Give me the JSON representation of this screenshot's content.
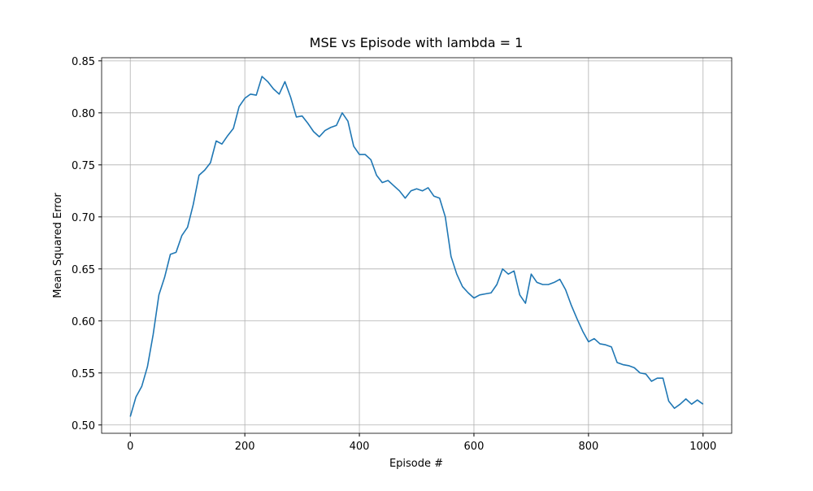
{
  "chart_data": {
    "type": "line",
    "title": "MSE vs Episode with lambda = 1",
    "x_label": "Episode #",
    "y_label": "Mean Squared Error",
    "x": [
      0,
      10,
      20,
      30,
      40,
      50,
      60,
      70,
      80,
      90,
      100,
      110,
      120,
      130,
      140,
      150,
      160,
      170,
      180,
      190,
      200,
      210,
      220,
      230,
      240,
      250,
      260,
      270,
      280,
      290,
      300,
      310,
      320,
      330,
      340,
      350,
      360,
      370,
      380,
      390,
      400,
      410,
      420,
      430,
      440,
      450,
      460,
      470,
      480,
      490,
      500,
      510,
      520,
      530,
      540,
      550,
      560,
      570,
      580,
      590,
      600,
      610,
      620,
      630,
      640,
      650,
      660,
      670,
      680,
      690,
      700,
      710,
      720,
      730,
      740,
      750,
      760,
      770,
      780,
      790,
      800,
      810,
      820,
      830,
      840,
      850,
      860,
      870,
      880,
      890,
      900,
      910,
      920,
      930,
      940,
      950,
      960,
      970,
      980,
      990,
      1000
    ],
    "values": [
      0.508,
      0.527,
      0.537,
      0.556,
      0.587,
      0.625,
      0.642,
      0.664,
      0.666,
      0.682,
      0.69,
      0.712,
      0.74,
      0.745,
      0.752,
      0.773,
      0.77,
      0.778,
      0.785,
      0.806,
      0.814,
      0.818,
      0.817,
      0.835,
      0.83,
      0.823,
      0.818,
      0.83,
      0.815,
      0.796,
      0.797,
      0.79,
      0.782,
      0.777,
      0.783,
      0.786,
      0.788,
      0.8,
      0.792,
      0.768,
      0.76,
      0.76,
      0.755,
      0.74,
      0.733,
      0.735,
      0.73,
      0.725,
      0.718,
      0.725,
      0.727,
      0.725,
      0.728,
      0.72,
      0.718,
      0.7,
      0.662,
      0.645,
      0.633,
      0.627,
      0.622,
      0.625,
      0.626,
      0.627,
      0.635,
      0.65,
      0.645,
      0.648,
      0.625,
      0.617,
      0.645,
      0.637,
      0.635,
      0.635,
      0.637,
      0.64,
      0.63,
      0.615,
      0.602,
      0.59,
      0.58,
      0.583,
      0.578,
      0.577,
      0.575,
      0.56,
      0.558,
      0.557,
      0.555,
      0.55,
      0.549,
      0.542,
      0.545,
      0.545,
      0.523,
      0.516,
      0.52,
      0.525,
      0.52,
      0.524,
      0.52
    ],
    "color": "#1f77b4",
    "xlim": [
      -50,
      1050
    ],
    "ylim": [
      0.492,
      0.853
    ],
    "xticks": [
      0,
      200,
      400,
      600,
      800,
      1000
    ],
    "yticks": [
      {
        "value": 0.5,
        "label": "0.50"
      },
      0.55,
      {
        "value": 0.6,
        "label": "0.60"
      },
      0.65,
      {
        "value": 0.7,
        "label": "0.70"
      },
      0.75,
      {
        "value": 0.8,
        "label": "0.80"
      },
      0.85
    ],
    "grid": true
  }
}
